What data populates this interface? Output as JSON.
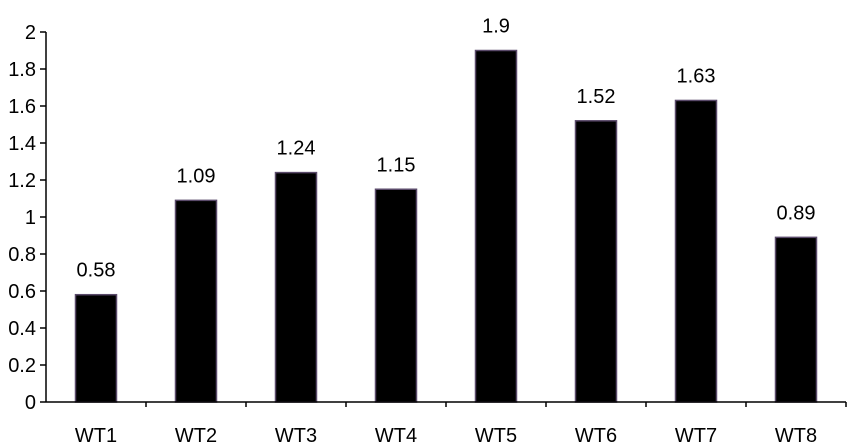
{
  "chart_data": {
    "type": "bar",
    "categories": [
      "WT1",
      "WT2",
      "WT3",
      "WT4",
      "WT5",
      "WT6",
      "WT7",
      "WT8"
    ],
    "values": [
      0.58,
      1.09,
      1.24,
      1.15,
      1.9,
      1.52,
      1.63,
      0.89
    ],
    "data_labels": [
      "0.58",
      "1.09",
      "1.24",
      "1.15",
      "1.9",
      "1.52",
      "1.63",
      "0.89"
    ],
    "ylim": [
      0,
      2
    ],
    "yticks": [
      "0",
      "0.2",
      "0.4",
      "0.6",
      "0.8",
      "1",
      "1.2",
      "1.4",
      "1.6",
      "1.8",
      "2"
    ],
    "title": "",
    "xlabel": "",
    "ylabel": "",
    "grid": false,
    "legend": "none",
    "bar_color": "#000000",
    "bar_edge_color": "#5a4a6a",
    "axis_color": "#000000"
  }
}
